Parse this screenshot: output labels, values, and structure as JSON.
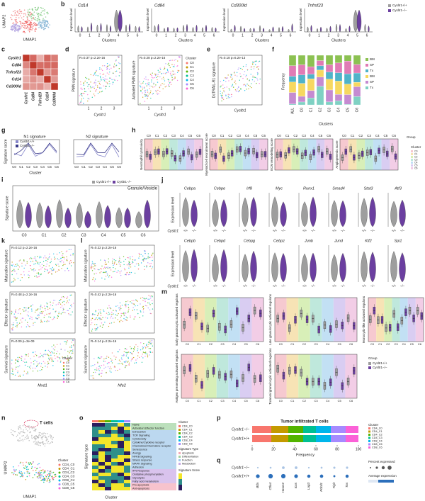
{
  "a": {
    "label": "a",
    "y_axis": "UMAP2",
    "x_axis": "UMAP1"
  },
  "b": {
    "label": "b",
    "genes": [
      "Cd14",
      "Cd84",
      "Cd300ld",
      "Tnfrsf23"
    ],
    "y_axis": "Expression level",
    "x_axis": "Clusters",
    "clusters": [
      "0",
      "1",
      "2",
      "3",
      "4",
      "5",
      "6"
    ],
    "legend": [
      "Cysltr1+/+",
      "Cysltr1−/−"
    ]
  },
  "c": {
    "label": "c",
    "genes": [
      "Cysltr1",
      "Cd84",
      "Tnfrsf23",
      "Cd14",
      "Cd300ld"
    ]
  },
  "d": {
    "label": "d",
    "plots": [
      {
        "stat": "R=0.37 p=2.2e-16",
        "y_axis": "PMN signature"
      },
      {
        "stat": "R=0.28 p=2.2e-16",
        "y_axis": "Activated PMN signature"
      }
    ],
    "x_axis": "Cysltr1",
    "x_ticks": [
      "1",
      "2",
      "3"
    ],
    "legend_title": "Cluster",
    "clusters": [
      "C0",
      "C1",
      "C2",
      "C3",
      "C4",
      "C5",
      "C6"
    ]
  },
  "e": {
    "label": "e",
    "stat": "R=0.18 p=6.2e-13",
    "y_axis": "DcTRAIL-R1 signature",
    "x_axis": "Cysltr1"
  },
  "f": {
    "label": "f",
    "y_axis": "Frequency",
    "x_axis": "Clusters",
    "categories": [
      "ALL",
      "C0",
      "C1",
      "C2",
      "C3",
      "C4",
      "C5",
      "C6"
    ],
    "legend": [
      "BM",
      "SP",
      "Tx"
    ]
  },
  "g": {
    "label": "g",
    "titles": [
      "N1 signature",
      "N2 signature"
    ],
    "y_axis": "Signature score",
    "x_axis": "Cluster",
    "legend": [
      "Cysltr1+/+",
      "Cysltr1−/−"
    ]
  },
  "h": {
    "label": "h",
    "scores": [
      "Neutrophil cytotoxicity",
      "Myeloid cell recruitment score",
      "ECM remodeling score",
      "Angiogenesis score"
    ],
    "legend_title": "Group",
    "group_title": "Cluster",
    "clusters": [
      "C0",
      "C1",
      "C2",
      "C3",
      "C4",
      "C5",
      "C6"
    ]
  },
  "i": {
    "label": "i",
    "y_axis": "Signature score",
    "title": "Granule/Vesicle",
    "clusters": [
      "C0",
      "C1",
      "C2",
      "C3",
      "C4",
      "C5",
      "C6"
    ],
    "legend": [
      "Cysltr1+/+",
      "Cysltr1−/−"
    ]
  },
  "j": {
    "label": "j",
    "genes_top": [
      "Cebpa",
      "Cebpe",
      "Irf8",
      "Myc",
      "Runx1",
      "Smad4",
      "Stat3",
      "Atf3"
    ],
    "genes_bottom": [
      "Cebpb",
      "Cebpd",
      "Cebpg",
      "Cebpz",
      "Junb",
      "Jund",
      "Klf2",
      "Spi1"
    ],
    "y_axis": "Expression level",
    "genotype": "Cysltr1",
    "groups": [
      "+/+",
      "−/−"
    ]
  },
  "k": {
    "label": "k",
    "plots": [
      {
        "stat": "R=0.12 p=2.2e-16",
        "y_axis": "Maturation signature"
      },
      {
        "stat": "R=0.48 p=2.2e-16",
        "y_axis": "Effector signature"
      },
      {
        "stat": "R=0.09 p=3e-09",
        "y_axis": "Survival signature"
      }
    ],
    "x_axis": "Mxd1"
  },
  "l": {
    "label": "l",
    "plots": [
      {
        "stat": "R=0.22 p=2.2e-16",
        "y_axis": "Maturation signature"
      },
      {
        "stat": "R=0.42 p=2.2e-16",
        "y_axis": "Effector signature"
      },
      {
        "stat": "R=0.14 p=2.2e-16",
        "y_axis": "Survival signature"
      }
    ],
    "x_axis": "Nfe2"
  },
  "m": {
    "label": "m",
    "regulons": [
      "Early granulocytic activated regulons",
      "Late granulocytic activated regulons",
      "Monocytic-like activated regulons",
      "Antigen presenting activated regulons",
      "Tumoral granulocytic activated regulons"
    ],
    "legend_title": "Group"
  },
  "n": {
    "label": "n",
    "title": "T cells",
    "y_axis": "UMAP2",
    "x_axis": "UMAP1",
    "legend_title": "Cluster",
    "clusters": [
      "CD4_C0",
      "CD4_C1",
      "CD4_C2",
      "CD4_C3",
      "CD8_C4",
      "CD8_C5",
      "CD8_C6"
    ]
  },
  "o": {
    "label": "o",
    "signatures": [
      "Naive",
      "Activation:Effector function",
      "Exhaustion",
      "TCR Signaling",
      "Cytotoxicity",
      "Cytokine/Cytokine receptor",
      "Chemokine/Chemokine receptor",
      "Senescence",
      "Anergy",
      "NFKB Signaling",
      "Stress response",
      "MAPK Signaling",
      "Adhesion",
      "IFN Response",
      "Oxidative phosphorylation",
      "Glycolysis",
      "Fatty acid metabolism",
      "Pro-apoptosis",
      "Anti-apoptosis"
    ],
    "y_axis": "Signature type",
    "x_axis": "Cluster",
    "legend_title": "Cluster",
    "type_title": "Signature Type",
    "types": [
      "Apoptosis",
      "Differentiation",
      "Function",
      "Metabolism"
    ],
    "score_title": "Signature Score"
  },
  "p": {
    "label": "p",
    "title": "Tumor infiltrated T cells",
    "groups": [
      "Cysltr1−/−",
      "Cysltr1+/+"
    ],
    "x_axis": "Frequency",
    "xticks": [
      0,
      20,
      40,
      60,
      80,
      100
    ],
    "legend_title": "Cluster"
  },
  "q": {
    "label": "q",
    "groups": [
      "Cysltr1−/−",
      "Cysltr1+/+"
    ],
    "percent_title": "Percent expressed",
    "avg_title": "Average expression",
    "genes": [
      "Btla",
      "Ctla4",
      "Havcr2",
      "Icos",
      "Lag3",
      "Pdcd1",
      "Tigit",
      "Tox"
    ]
  }
}
